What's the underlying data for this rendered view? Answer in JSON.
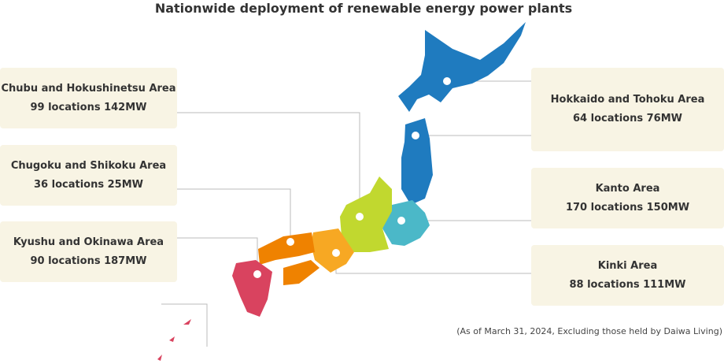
{
  "title": "Nationwide deployment of renewable energy power plants",
  "areas": [
    {
      "name": "Chubu and Hokushinetsu Area",
      "detail": "99 locations 142MW"
    },
    {
      "name": "Chugoku and Shikoku Area",
      "detail": "36 locations 25MW"
    },
    {
      "name": "Kyushu and Okinawa Area",
      "detail": "90 locations 187MW"
    },
    {
      "name": "Hokkaido and Tohoku Area",
      "detail": "64 locations 76MW"
    },
    {
      "name": "Kanto Area",
      "detail": "170 locations 150MW"
    },
    {
      "name": "Kinki Area",
      "detail": "88 locations 111MW"
    }
  ],
  "footnote": "(As of March 31, 2024, Excluding those held by Daiwa Living)"
}
